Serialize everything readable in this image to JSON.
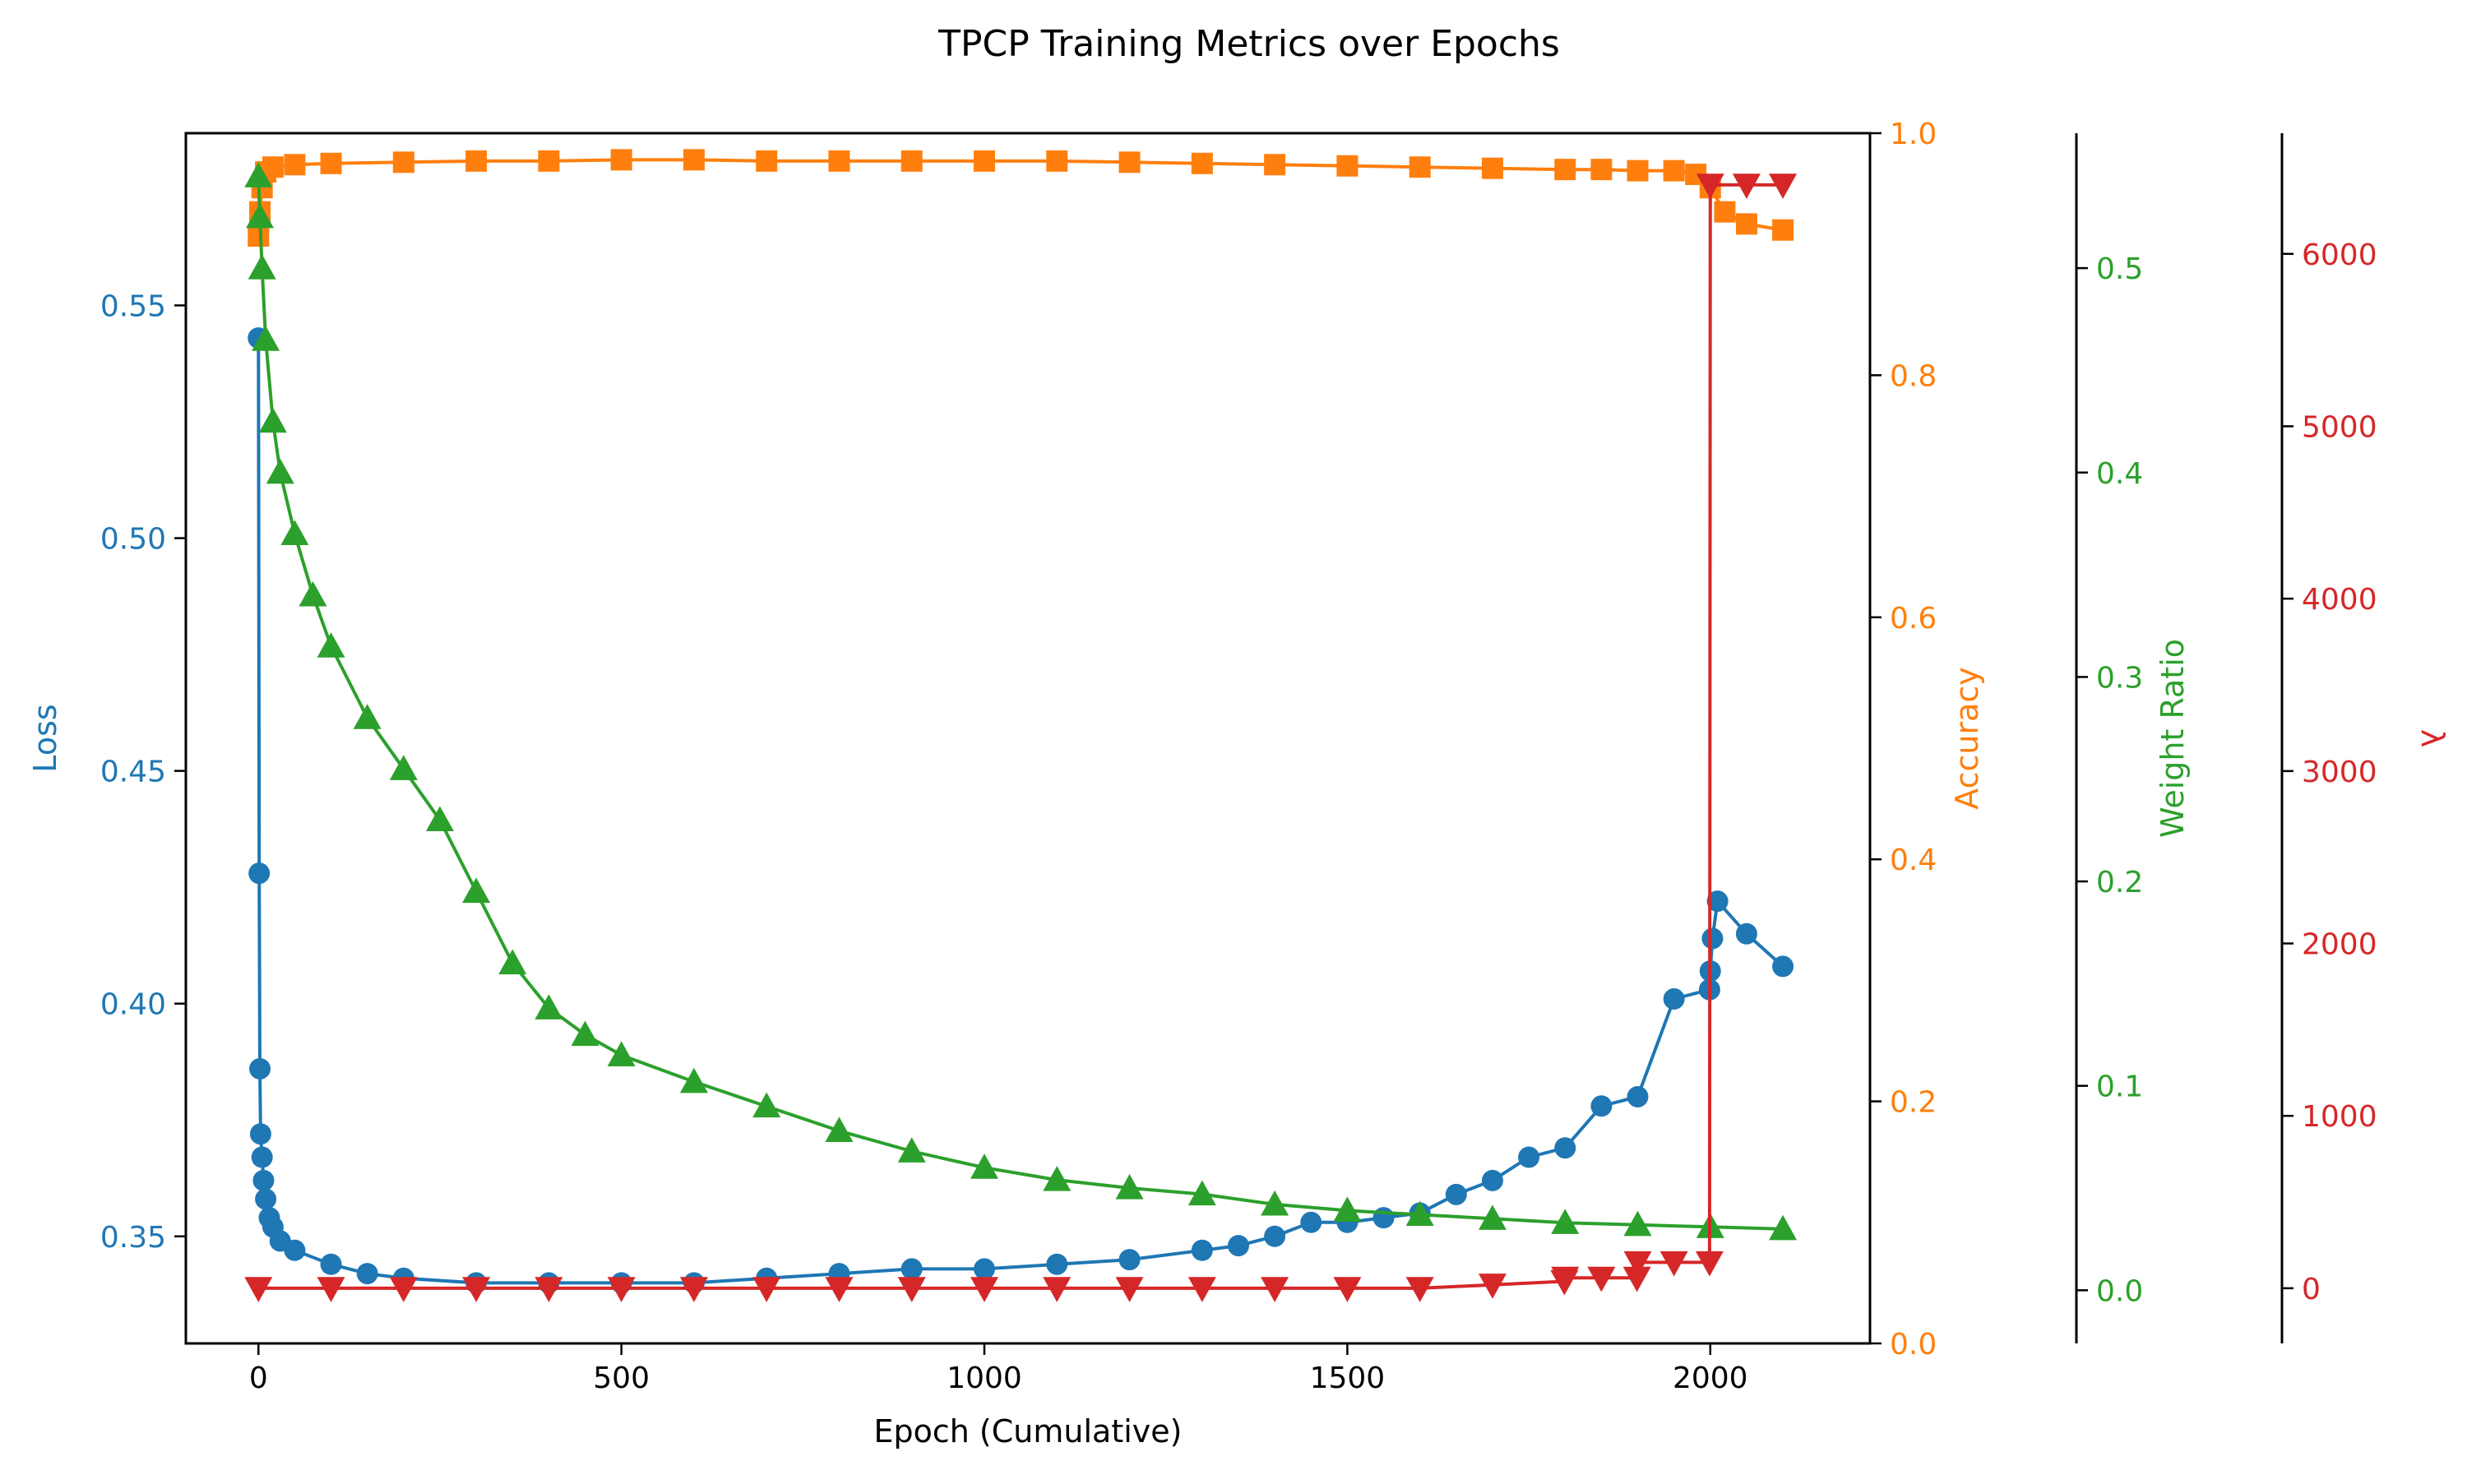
{
  "chart_data": {
    "type": "line",
    "title": "TPCP Training Metrics over Epochs",
    "xlabel": "Epoch (Cumulative)",
    "xlim": [
      -100,
      2220
    ],
    "xticks": [
      0,
      500,
      1000,
      1500,
      2000
    ],
    "xtick_labels": [
      "0",
      "500",
      "1000",
      "1500",
      "2000"
    ],
    "grid": false,
    "axes": [
      {
        "id": "loss",
        "label": "Loss",
        "color": "#1f77b4",
        "side": "left",
        "ylim": [
          0.327,
          0.587
        ],
        "ticks": [
          0.35,
          0.4,
          0.45,
          0.5,
          0.55
        ],
        "tick_labels": [
          "0.35",
          "0.40",
          "0.45",
          "0.50",
          "0.55"
        ]
      },
      {
        "id": "accuracy",
        "label": "Accuracy",
        "color": "#ff7f0e",
        "side": "right",
        "ylim": [
          0.0,
          1.0
        ],
        "ticks": [
          0.0,
          0.2,
          0.4,
          0.6,
          0.8,
          1.0
        ],
        "tick_labels": [
          "0.0",
          "0.2",
          "0.4",
          "0.6",
          "0.8",
          "1.0"
        ]
      },
      {
        "id": "weight_ratio",
        "label": "Weight Ratio",
        "color": "#2ca02c",
        "side": "right",
        "ylim": [
          -0.026,
          0.566
        ],
        "ticks": [
          0.0,
          0.1,
          0.2,
          0.3,
          0.4,
          0.5
        ],
        "tick_labels": [
          "0.0",
          "0.1",
          "0.2",
          "0.3",
          "0.4",
          "0.5"
        ]
      },
      {
        "id": "lambda",
        "label": "λ",
        "color": "#d62728",
        "side": "right",
        "ylim": [
          -320,
          6700
        ],
        "ticks": [
          0,
          1000,
          2000,
          3000,
          4000,
          5000,
          6000
        ],
        "tick_labels": [
          "0",
          "1000",
          "2000",
          "3000",
          "4000",
          "5000",
          "6000"
        ]
      }
    ],
    "series": [
      {
        "axis": "loss",
        "marker": "circle",
        "color": "#1f77b4",
        "x": [
          0,
          1,
          2,
          3,
          5,
          7,
          10,
          15,
          20,
          30,
          50,
          100,
          150,
          200,
          300,
          400,
          500,
          600,
          700,
          800,
          900,
          1000,
          1100,
          1200,
          1300,
          1350,
          1400,
          1450,
          1500,
          1550,
          1600,
          1650,
          1700,
          1750,
          1800,
          1850,
          1900,
          1950,
          1999,
          2000,
          2003,
          2010,
          2050,
          2100
        ],
        "y": [
          0.543,
          0.428,
          0.386,
          0.372,
          0.367,
          0.362,
          0.358,
          0.354,
          0.352,
          0.349,
          0.347,
          0.344,
          0.342,
          0.341,
          0.34,
          0.34,
          0.34,
          0.34,
          0.341,
          0.342,
          0.343,
          0.343,
          0.344,
          0.345,
          0.347,
          0.348,
          0.35,
          0.353,
          0.353,
          0.354,
          0.355,
          0.359,
          0.362,
          0.367,
          0.369,
          0.378,
          0.38,
          0.401,
          0.403,
          0.407,
          0.414,
          0.422,
          0.415,
          0.408
        ]
      },
      {
        "axis": "accuracy",
        "marker": "square",
        "color": "#ff7f0e",
        "x": [
          0,
          2,
          5,
          10,
          20,
          50,
          100,
          200,
          300,
          400,
          500,
          600,
          700,
          800,
          900,
          1000,
          1100,
          1200,
          1300,
          1400,
          1500,
          1600,
          1700,
          1800,
          1850,
          1900,
          1950,
          1980,
          2000,
          2020,
          2050,
          2100
        ],
        "y": [
          0.915,
          0.935,
          0.955,
          0.968,
          0.972,
          0.974,
          0.975,
          0.976,
          0.977,
          0.977,
          0.978,
          0.978,
          0.977,
          0.977,
          0.977,
          0.977,
          0.977,
          0.976,
          0.975,
          0.974,
          0.973,
          0.972,
          0.971,
          0.97,
          0.97,
          0.969,
          0.969,
          0.966,
          0.955,
          0.935,
          0.925,
          0.92
        ]
      },
      {
        "axis": "weight_ratio",
        "marker": "triangle-up",
        "color": "#2ca02c",
        "x": [
          0,
          2,
          5,
          10,
          20,
          30,
          50,
          75,
          100,
          150,
          200,
          250,
          300,
          350,
          400,
          450,
          500,
          600,
          700,
          800,
          900,
          1000,
          1100,
          1200,
          1300,
          1400,
          1500,
          1600,
          1700,
          1800,
          1900,
          2000,
          2100
        ],
        "y": [
          0.545,
          0.525,
          0.5,
          0.465,
          0.425,
          0.4,
          0.37,
          0.34,
          0.315,
          0.28,
          0.255,
          0.23,
          0.195,
          0.16,
          0.138,
          0.125,
          0.115,
          0.102,
          0.09,
          0.078,
          0.068,
          0.06,
          0.054,
          0.05,
          0.047,
          0.042,
          0.039,
          0.037,
          0.035,
          0.033,
          0.032,
          0.031,
          0.03
        ]
      },
      {
        "axis": "lambda",
        "marker": "triangle-down",
        "color": "#d62728",
        "x": [
          0,
          100,
          200,
          300,
          400,
          500,
          600,
          700,
          800,
          900,
          1000,
          1100,
          1200,
          1300,
          1400,
          1500,
          1600,
          1700,
          1799,
          1800,
          1850,
          1899,
          1900,
          1950,
          1999,
          2000,
          2050,
          2100
        ],
        "y": [
          0,
          0,
          0,
          0,
          0,
          0,
          0,
          0,
          0,
          0,
          0,
          0,
          0,
          0,
          0,
          0,
          0,
          20,
          40,
          60,
          60,
          60,
          150,
          150,
          150,
          6400,
          6400,
          6400
        ]
      }
    ]
  }
}
